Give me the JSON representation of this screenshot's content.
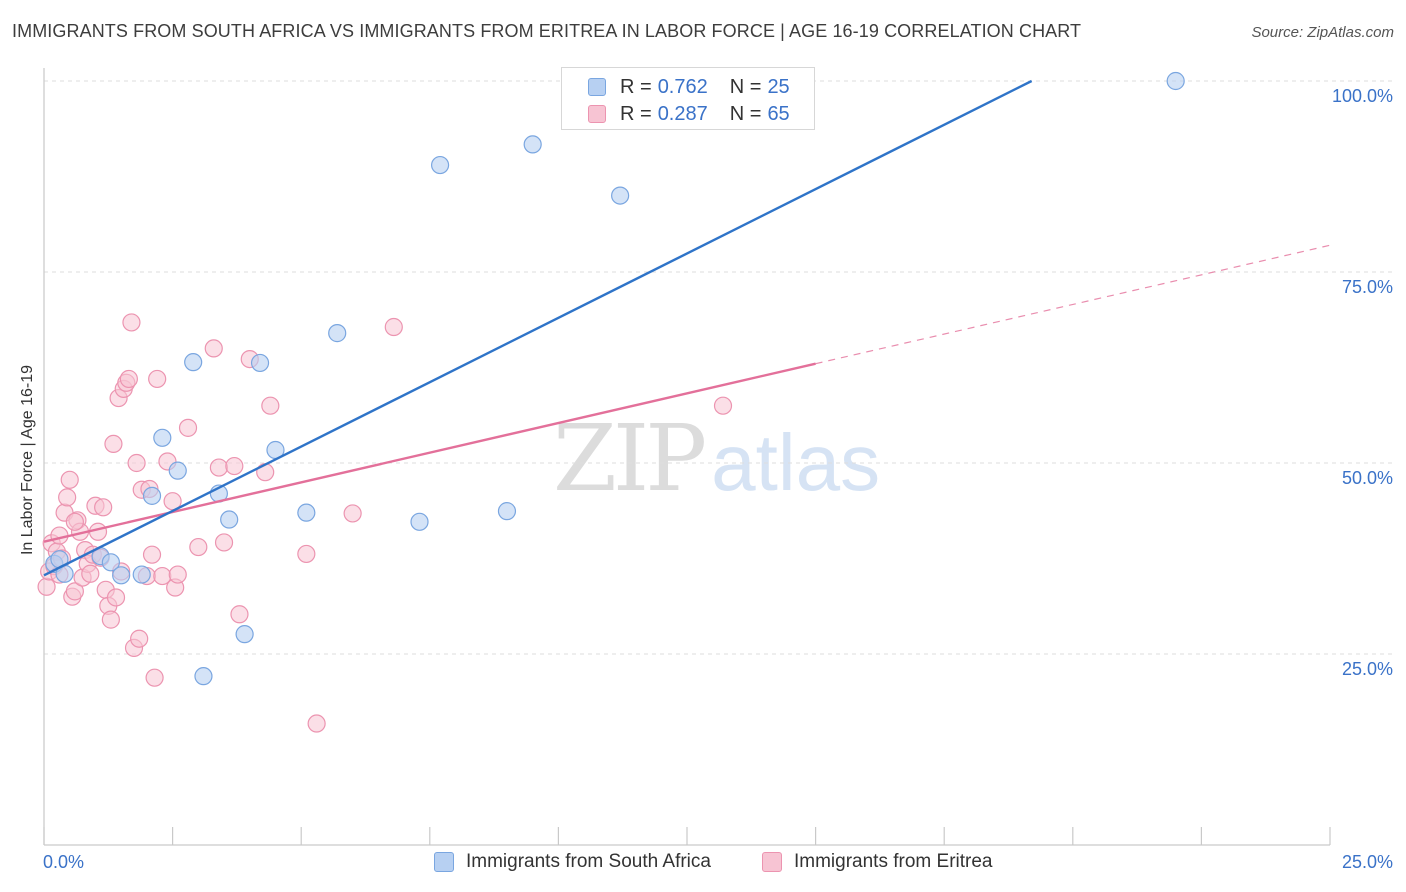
{
  "title": "IMMIGRANTS FROM SOUTH AFRICA VS IMMIGRANTS FROM ERITREA IN LABOR FORCE | AGE 16-19 CORRELATION CHART",
  "source": "Source: ZipAtlas.com",
  "watermark": {
    "zip": "ZIP",
    "atlas": "atlas"
  },
  "legend": {
    "rows": [
      {
        "r_label": "R =",
        "r_value": "0.762",
        "n_label": "N =",
        "n_value": "25"
      },
      {
        "r_label": "R =",
        "r_value": "0.287",
        "n_label": "N =",
        "n_value": "65"
      }
    ]
  },
  "bottom_legend": [
    {
      "label": "Immigrants from South Africa"
    },
    {
      "label": "Immigrants from Eritrea"
    }
  ],
  "colors": {
    "blue_fill": "#b7d0f2",
    "blue_stroke": "#7aa6e0",
    "blue_line": "#2f74c8",
    "pink_fill": "#f7c4d3",
    "pink_stroke": "#ec94b0",
    "pink_line": "#e3709a",
    "grid": "#dedede",
    "axis": "#c9c9c9"
  },
  "chart_data": {
    "type": "scatter",
    "title": "IMMIGRANTS FROM SOUTH AFRICA VS IMMIGRANTS FROM ERITREA IN LABOR FORCE | AGE 16-19 CORRELATION CHART",
    "xlabel": "",
    "ylabel": "In Labor Force | Age 16-19",
    "xlim": [
      0,
      25
    ],
    "ylim": [
      0,
      102
    ],
    "x_tick_labels": [
      "0.0%",
      "25.0%"
    ],
    "y_ticks": [
      25,
      50,
      75,
      100
    ],
    "y_tick_labels": [
      "25.0%",
      "50.0%",
      "75.0%",
      "100.0%"
    ],
    "grid": true,
    "series": [
      {
        "name": "Immigrants from South Africa",
        "R": 0.762,
        "N": 25,
        "points": [
          [
            0.2,
            36.8
          ],
          [
            0.3,
            37.4
          ],
          [
            0.4,
            35.5
          ],
          [
            1.1,
            37.8
          ],
          [
            1.3,
            37.0
          ],
          [
            1.5,
            35.3
          ],
          [
            1.9,
            35.4
          ],
          [
            2.1,
            45.7
          ],
          [
            2.3,
            53.3
          ],
          [
            2.6,
            49.0
          ],
          [
            2.9,
            63.2
          ],
          [
            3.1,
            22.1
          ],
          [
            3.4,
            46.0
          ],
          [
            3.6,
            42.6
          ],
          [
            3.9,
            27.6
          ],
          [
            4.2,
            63.1
          ],
          [
            4.5,
            51.7
          ],
          [
            5.1,
            43.5
          ],
          [
            5.7,
            67.0
          ],
          [
            7.3,
            42.3
          ],
          [
            7.7,
            89.0
          ],
          [
            9.0,
            43.7
          ],
          [
            9.5,
            91.7
          ],
          [
            11.2,
            85.0
          ],
          [
            22.0,
            100.0
          ]
        ],
        "trend": {
          "x0": 0,
          "y0": 35.3,
          "x1": 19.2,
          "y1": 100.0,
          "style": "solid"
        }
      },
      {
        "name": "Immigrants from Eritrea",
        "R": 0.287,
        "N": 65,
        "points": [
          [
            0.05,
            33.8
          ],
          [
            0.1,
            35.8
          ],
          [
            0.15,
            39.5
          ],
          [
            0.2,
            36.5
          ],
          [
            0.25,
            38.4
          ],
          [
            0.3,
            40.5
          ],
          [
            0.35,
            37.5
          ],
          [
            0.4,
            43.5
          ],
          [
            0.45,
            45.5
          ],
          [
            0.5,
            47.8
          ],
          [
            0.55,
            32.5
          ],
          [
            0.6,
            33.2
          ],
          [
            0.65,
            42.5
          ],
          [
            0.7,
            41.0
          ],
          [
            0.75,
            35.0
          ],
          [
            0.8,
            38.6
          ],
          [
            0.85,
            36.8
          ],
          [
            0.9,
            35.5
          ],
          [
            0.95,
            38.0
          ],
          [
            1.0,
            44.4
          ],
          [
            1.05,
            41.0
          ],
          [
            1.1,
            37.6
          ],
          [
            1.15,
            44.2
          ],
          [
            1.2,
            33.4
          ],
          [
            1.25,
            31.3
          ],
          [
            1.3,
            29.5
          ],
          [
            1.35,
            52.5
          ],
          [
            1.4,
            32.4
          ],
          [
            1.45,
            58.5
          ],
          [
            1.5,
            35.8
          ],
          [
            1.55,
            59.7
          ],
          [
            1.6,
            60.5
          ],
          [
            1.65,
            61.0
          ],
          [
            1.7,
            68.4
          ],
          [
            1.75,
            25.8
          ],
          [
            1.8,
            50.0
          ],
          [
            1.85,
            27.0
          ],
          [
            1.9,
            46.5
          ],
          [
            2.0,
            35.2
          ],
          [
            2.05,
            46.6
          ],
          [
            2.1,
            38.0
          ],
          [
            2.15,
            21.9
          ],
          [
            2.2,
            61.0
          ],
          [
            2.3,
            35.2
          ],
          [
            2.4,
            50.2
          ],
          [
            2.5,
            45.0
          ],
          [
            2.55,
            33.7
          ],
          [
            2.6,
            35.4
          ],
          [
            2.8,
            54.6
          ],
          [
            3.0,
            39.0
          ],
          [
            3.3,
            65.0
          ],
          [
            3.4,
            49.4
          ],
          [
            3.5,
            39.6
          ],
          [
            3.7,
            49.6
          ],
          [
            3.8,
            30.2
          ],
          [
            4.0,
            63.6
          ],
          [
            4.3,
            48.8
          ],
          [
            4.4,
            57.5
          ],
          [
            5.1,
            38.1
          ],
          [
            5.3,
            15.9
          ],
          [
            6.0,
            43.4
          ],
          [
            6.8,
            67.8
          ],
          [
            13.2,
            57.5
          ],
          [
            0.3,
            35.4
          ],
          [
            0.6,
            42.3
          ]
        ],
        "trend": {
          "x0": 0,
          "y0": 39.7,
          "x1": 15.0,
          "y1": 63.0,
          "style": "solid"
        },
        "trend_extension": {
          "x0": 15.0,
          "y0": 63.0,
          "x1": 25.0,
          "y1": 78.5,
          "style": "dashed"
        }
      }
    ]
  }
}
